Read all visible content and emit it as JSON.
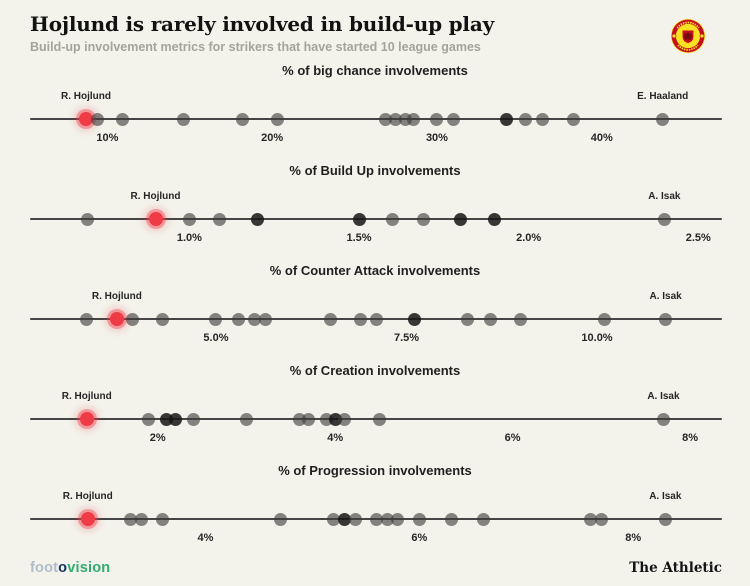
{
  "header": {
    "title": "Hojlund is rarely involved in build-up play",
    "subtitle": "Build-up involvement metrics for strikers that have started 10 league games"
  },
  "footer": {
    "brand_left": {
      "part1": "foot",
      "part2": "o",
      "part3": "vision"
    },
    "brand_right": "The Athletic"
  },
  "colors": {
    "background": "#f3f2eb",
    "accent_red": "#ee3b46",
    "dot_gray": "#3e3e3e",
    "brand_green": "#2fac73",
    "badge_red": "#c20e1e",
    "badge_gold": "#fbe122"
  },
  "chart_data": [
    {
      "type": "scatter",
      "title": "% of big chance involvements",
      "axis": {
        "min": 5.3,
        "max": 47.3,
        "grid": false
      },
      "ticks": [
        {
          "v": 10,
          "label": "10%"
        },
        {
          "v": 20,
          "label": "20%"
        },
        {
          "v": 30,
          "label": "30%"
        },
        {
          "v": 40,
          "label": "40%"
        }
      ],
      "points": [
        {
          "v": 8.7,
          "kind": "highlight",
          "label": "R. Hojlund"
        },
        {
          "v": 9.4
        },
        {
          "v": 10.9
        },
        {
          "v": 14.6
        },
        {
          "v": 18.2
        },
        {
          "v": 20.3
        },
        {
          "v": 26.9
        },
        {
          "v": 27.5
        },
        {
          "v": 28.1
        },
        {
          "v": 28.6
        },
        {
          "v": 30.0
        },
        {
          "v": 31.0
        },
        {
          "v": 34.2,
          "kind": "dark"
        },
        {
          "v": 35.4
        },
        {
          "v": 36.4
        },
        {
          "v": 38.3
        },
        {
          "v": 43.7,
          "label": "E. Haaland"
        }
      ]
    },
    {
      "type": "scatter",
      "title": "% of Build Up involvements",
      "axis": {
        "min": 0.53,
        "max": 2.57,
        "grid": false
      },
      "ticks": [
        {
          "v": 1.0,
          "label": "1.0%"
        },
        {
          "v": 1.5,
          "label": "1.5%"
        },
        {
          "v": 2.0,
          "label": "2.0%"
        },
        {
          "v": 2.5,
          "label": "2.5%"
        }
      ],
      "points": [
        {
          "v": 0.7
        },
        {
          "v": 0.9,
          "kind": "highlight",
          "label": "R. Hojlund"
        },
        {
          "v": 1.0
        },
        {
          "v": 1.09
        },
        {
          "v": 1.2,
          "kind": "dark"
        },
        {
          "v": 1.5,
          "kind": "dark"
        },
        {
          "v": 1.6
        },
        {
          "v": 1.69
        },
        {
          "v": 1.8,
          "kind": "dark"
        },
        {
          "v": 1.9,
          "kind": "dark"
        },
        {
          "v": 2.4,
          "label": "A. Isak"
        }
      ]
    },
    {
      "type": "scatter",
      "title": "% of Counter Attack involvements",
      "axis": {
        "min": 2.56,
        "max": 11.64,
        "grid": false
      },
      "ticks": [
        {
          "v": 5.0,
          "label": "5.0%"
        },
        {
          "v": 7.5,
          "label": "7.5%"
        },
        {
          "v": 10.0,
          "label": "10.0%"
        }
      ],
      "points": [
        {
          "v": 3.3
        },
        {
          "v": 3.7,
          "kind": "highlight",
          "label": "R. Hojlund"
        },
        {
          "v": 3.9
        },
        {
          "v": 4.3
        },
        {
          "v": 5.0
        },
        {
          "v": 5.3
        },
        {
          "v": 5.5
        },
        {
          "v": 5.65
        },
        {
          "v": 6.5
        },
        {
          "v": 6.9
        },
        {
          "v": 7.1
        },
        {
          "v": 7.6,
          "kind": "dark"
        },
        {
          "v": 8.3
        },
        {
          "v": 8.6
        },
        {
          "v": 9.0
        },
        {
          "v": 10.1
        },
        {
          "v": 10.9,
          "label": "A. Isak"
        }
      ]
    },
    {
      "type": "scatter",
      "title": "% of Creation involvements",
      "axis": {
        "min": 0.56,
        "max": 8.36,
        "grid": false
      },
      "ticks": [
        {
          "v": 2,
          "label": "2%"
        },
        {
          "v": 4,
          "label": "4%"
        },
        {
          "v": 6,
          "label": "6%"
        },
        {
          "v": 8,
          "label": "8%"
        }
      ],
      "points": [
        {
          "v": 1.2,
          "kind": "highlight",
          "label": "R. Hojlund"
        },
        {
          "v": 1.9
        },
        {
          "v": 2.1,
          "kind": "dark"
        },
        {
          "v": 2.2,
          "kind": "dark"
        },
        {
          "v": 2.4
        },
        {
          "v": 3.0
        },
        {
          "v": 3.6
        },
        {
          "v": 3.7
        },
        {
          "v": 3.9
        },
        {
          "v": 4.0,
          "kind": "dark"
        },
        {
          "v": 4.1
        },
        {
          "v": 4.5
        },
        {
          "v": 7.7,
          "label": "A. Isak"
        }
      ]
    },
    {
      "type": "scatter",
      "title": "% of Progression involvements",
      "axis": {
        "min": 2.36,
        "max": 8.83,
        "grid": false
      },
      "ticks": [
        {
          "v": 4,
          "label": "4%"
        },
        {
          "v": 6,
          "label": "6%"
        },
        {
          "v": 8,
          "label": "8%"
        }
      ],
      "points": [
        {
          "v": 2.9,
          "kind": "highlight",
          "label": "R. Hojlund"
        },
        {
          "v": 3.3
        },
        {
          "v": 3.4
        },
        {
          "v": 3.6
        },
        {
          "v": 4.7
        },
        {
          "v": 5.2
        },
        {
          "v": 5.3,
          "kind": "dark"
        },
        {
          "v": 5.4
        },
        {
          "v": 5.6
        },
        {
          "v": 5.7
        },
        {
          "v": 5.8
        },
        {
          "v": 6.0
        },
        {
          "v": 6.3
        },
        {
          "v": 6.6
        },
        {
          "v": 7.6
        },
        {
          "v": 7.7
        },
        {
          "v": 8.3,
          "label": "A. Isak"
        }
      ]
    }
  ]
}
